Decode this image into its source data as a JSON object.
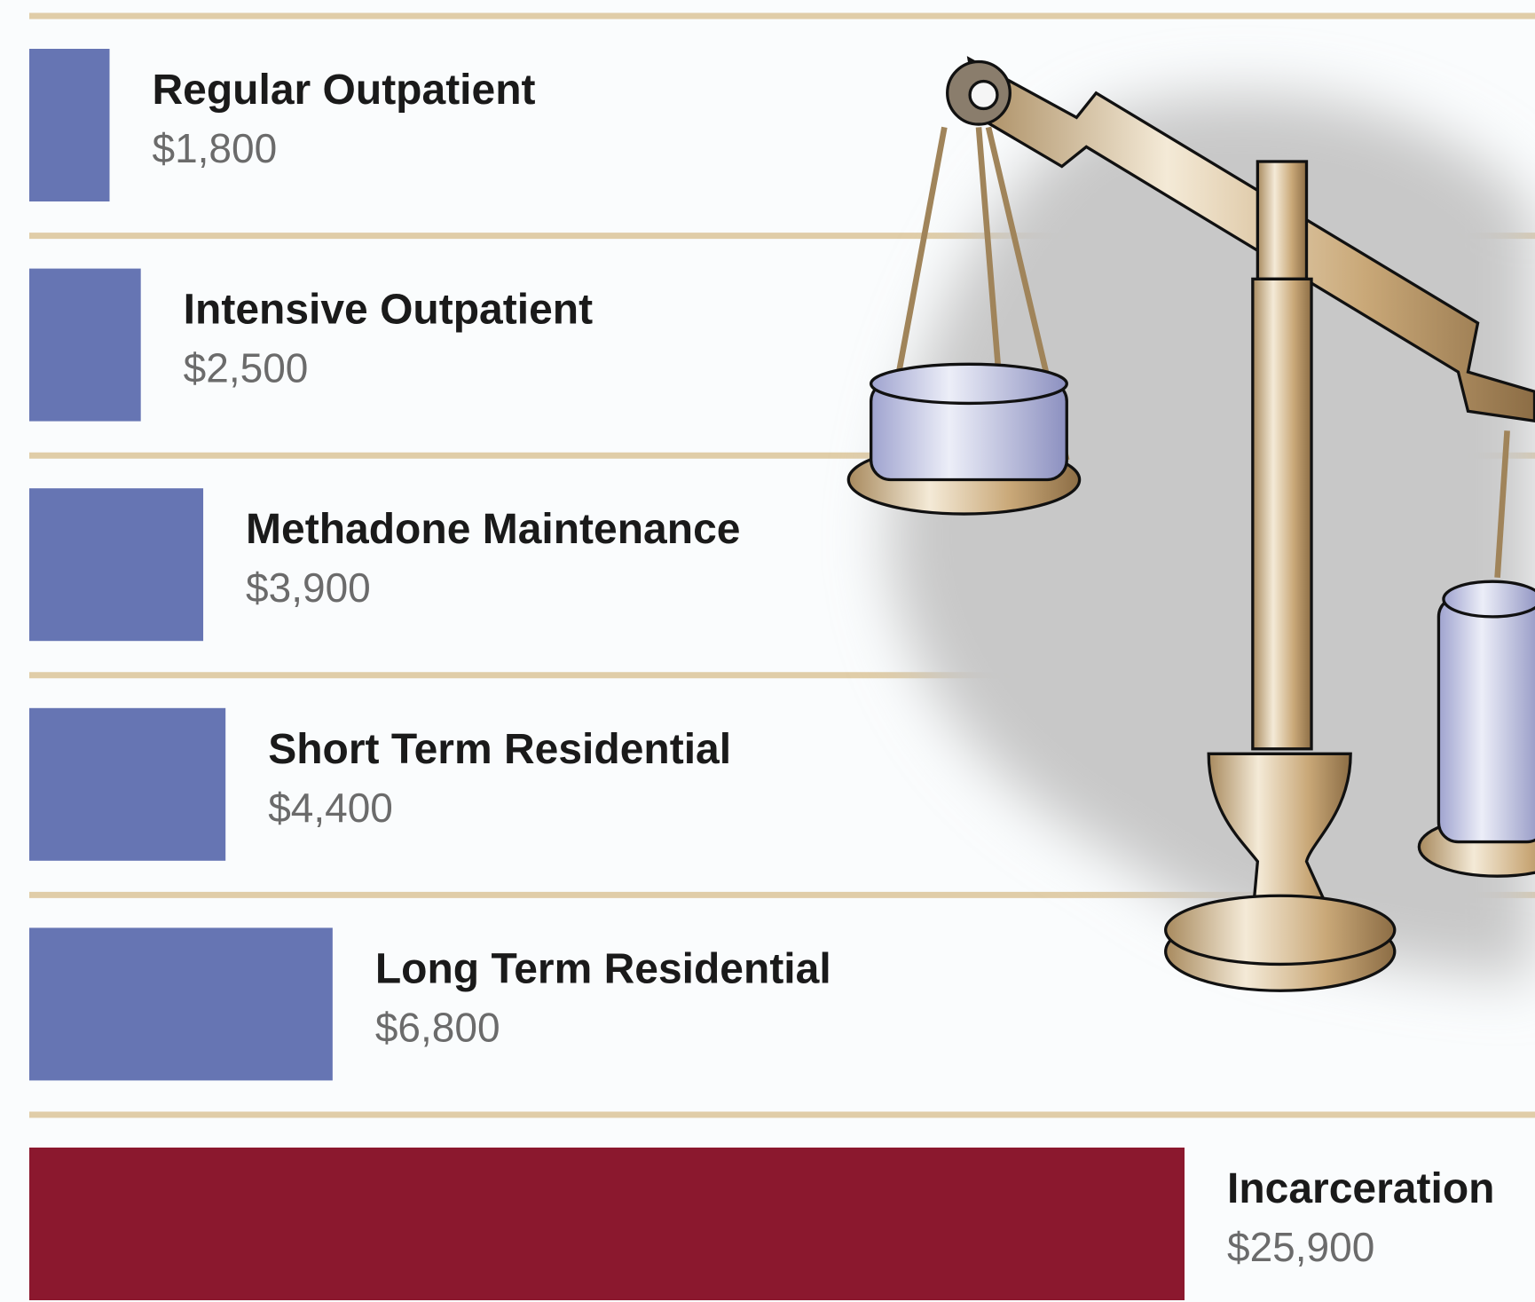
{
  "chart_data": {
    "type": "bar",
    "orientation": "horizontal",
    "categories": [
      "Regular Outpatient",
      "Intensive Outpatient",
      "Methadone Maintenance",
      "Short Term Residential",
      "Long Term Residential",
      "Incarceration"
    ],
    "values": [
      1800,
      2500,
      3900,
      4400,
      6800,
      25900
    ],
    "value_labels": [
      "$1,800",
      "$2,500",
      "$3,900",
      "$4,400",
      "$6,800",
      "$25,900"
    ],
    "colors": [
      "#6675b3",
      "#6675b3",
      "#6675b3",
      "#6675b3",
      "#6675b3",
      "#8b182e"
    ]
  }
}
